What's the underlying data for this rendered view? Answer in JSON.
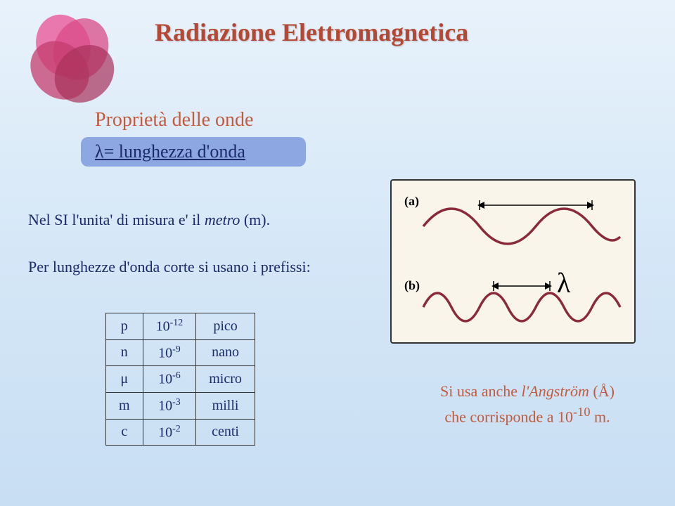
{
  "logo": {
    "petal_colors": [
      "#e85a9b",
      "#d94b87",
      "#c43d6e",
      "#a8325a"
    ],
    "opacity": 0.85
  },
  "title": "Radiazione Elettromagnetica",
  "subtitle": "Proprietà delle onde",
  "lambda_def": "λ= lunghezza d'onda",
  "body1_prefix": "Nel SI l'unita' di misura e'  il ",
  "body1_italic": "metro",
  "body1_suffix": " (m).",
  "body2": "Per lunghezze d'onda corte si usano i prefissi:",
  "prefixes": [
    {
      "sym": "p",
      "exp": "-12",
      "name": "pico"
    },
    {
      "sym": "n",
      "exp": "-9",
      "name": "nano"
    },
    {
      "sym": "μ",
      "exp": "-6",
      "name": "micro"
    },
    {
      "sym": "m",
      "exp": "-3",
      "name": "milli"
    },
    {
      "sym": "c",
      "exp": "-2",
      "name": "centi"
    }
  ],
  "wave_diagram": {
    "bg": "#f9f5ea",
    "wave_color": "#8b2a3a",
    "arrow_color": "#000",
    "label_a": "(a)",
    "label_b": "(b)",
    "lambda_symbol": "λ"
  },
  "angstrom_line1_prefix": "Si usa anche ",
  "angstrom_line1_italic": "l'Angström",
  "angstrom_line1_suffix": " (Å)",
  "angstrom_line2_prefix": "che corrisponde a 10",
  "angstrom_line2_exp": "-10",
  "angstrom_line2_suffix": " m."
}
